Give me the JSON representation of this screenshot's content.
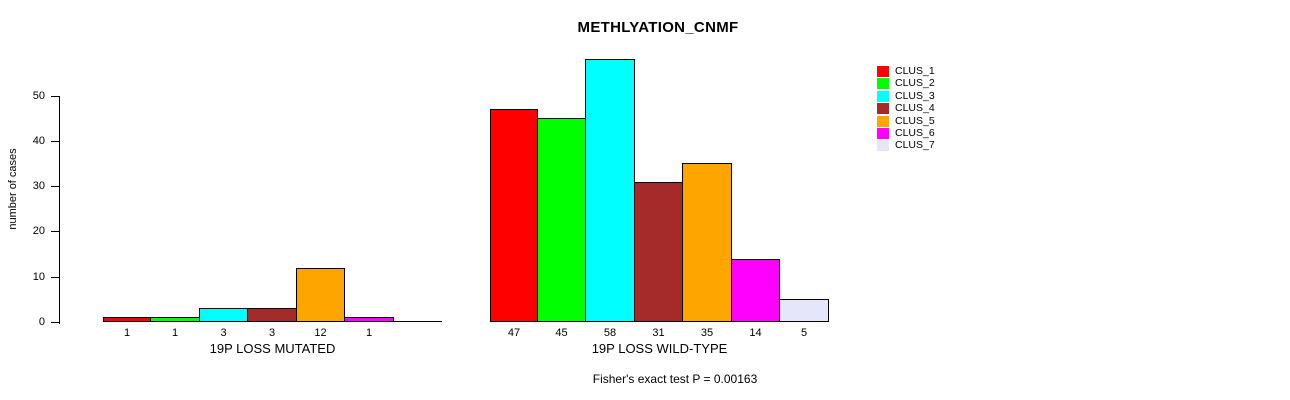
{
  "chart_data": {
    "type": "bar",
    "title": "METHLYATION_CNMF",
    "ylabel": "number of cases",
    "xlabel": "",
    "ylim": [
      0,
      58
    ],
    "yticks": [
      0,
      10,
      20,
      30,
      40,
      50
    ],
    "grid": false,
    "legend_position": "right",
    "bar_border_color": "#000000",
    "clusters": [
      {
        "name": "CLUS_1",
        "color": "#FF0000"
      },
      {
        "name": "CLUS_2",
        "color": "#00FF00"
      },
      {
        "name": "CLUS_3",
        "color": "#00FFFF"
      },
      {
        "name": "CLUS_4",
        "color": "#A52A2A"
      },
      {
        "name": "CLUS_5",
        "color": "#FFA500"
      },
      {
        "name": "CLUS_6",
        "color": "#FF00FF"
      },
      {
        "name": "CLUS_7",
        "color": "#E6E6FA"
      }
    ],
    "groups": [
      {
        "label": "19P LOSS MUTATED",
        "values": [
          1,
          1,
          3,
          3,
          12,
          1,
          0
        ],
        "value_labels": [
          "1",
          "1",
          "3",
          "3",
          "12",
          "1",
          ""
        ]
      },
      {
        "label": "19P LOSS WILD-TYPE",
        "values": [
          47,
          45,
          58,
          31,
          35,
          14,
          5
        ],
        "value_labels": [
          "47",
          "45",
          "58",
          "31",
          "35",
          "14",
          "5"
        ]
      }
    ],
    "annotation": "Fisher's exact test P = 0.00163"
  }
}
